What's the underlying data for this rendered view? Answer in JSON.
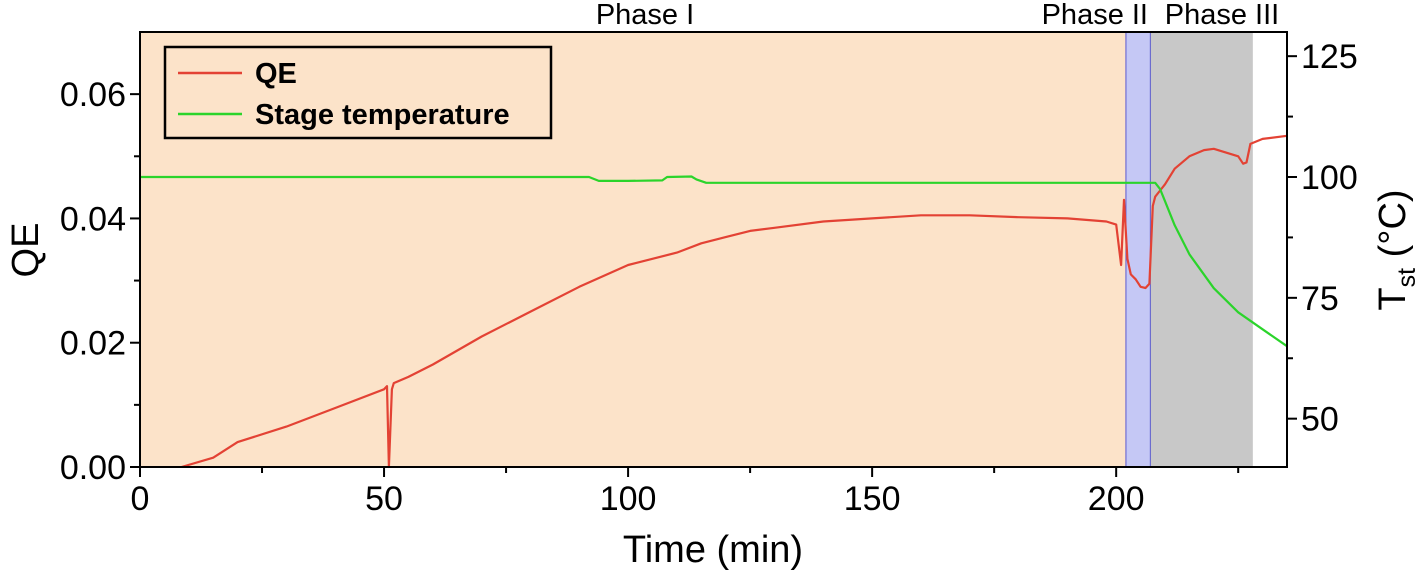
{
  "chart_data": {
    "type": "line",
    "xlabel": "Time (min)",
    "ylabel_left": "QE",
    "ylabel_right_main": "T",
    "ylabel_right_sub": "st",
    "ylabel_right_unit": " (°C)",
    "xlim": [
      0,
      235
    ],
    "ylim_left": [
      0,
      0.07
    ],
    "ylim_right": [
      40,
      130
    ],
    "x_ticks": [
      0,
      50,
      100,
      150,
      200
    ],
    "x_tick_labels": [
      "0",
      "50",
      "100",
      "150",
      "200"
    ],
    "y_left_ticks": [
      0,
      0.02,
      0.04,
      0.06
    ],
    "y_left_tick_labels": [
      "0.00",
      "0.02",
      "0.04",
      "0.06"
    ],
    "y_right_ticks": [
      50,
      75,
      100,
      125
    ],
    "y_right_tick_labels": [
      "50",
      "75",
      "100",
      "125"
    ],
    "grid": false,
    "legend_position": "top-left",
    "phases": [
      {
        "label": "Phase I",
        "x_start": 0,
        "x_end": 202,
        "color": "#fce3c9"
      },
      {
        "label": "Phase II",
        "x_start": 202,
        "x_end": 207,
        "color": "#c5c8f5"
      },
      {
        "label": "Phase III",
        "x_start": 207,
        "x_end": 228,
        "color": "#c8c8c8"
      }
    ],
    "series": [
      {
        "name": "QE",
        "axis": "left",
        "color": "#e34234",
        "x": [
          8.5,
          15,
          20,
          30,
          40,
          50,
          50.6,
          51.0,
          51.6,
          52,
          55,
          60,
          70,
          80,
          90,
          100,
          110,
          115,
          120,
          125,
          130,
          140,
          150,
          160,
          170,
          180,
          190,
          198,
          200,
          201,
          201.6,
          202.3,
          203,
          204,
          205,
          206,
          206.8,
          207.5,
          208,
          209,
          210,
          212,
          215,
          218,
          220,
          225,
          226,
          226.7,
          227.5,
          230,
          235
        ],
        "y": [
          0.0,
          0.0015,
          0.004,
          0.0065,
          0.0095,
          0.0125,
          0.013,
          0.0,
          0.0125,
          0.0135,
          0.0145,
          0.0165,
          0.021,
          0.025,
          0.029,
          0.0325,
          0.0345,
          0.036,
          0.037,
          0.038,
          0.0385,
          0.0395,
          0.04,
          0.0405,
          0.0405,
          0.0402,
          0.04,
          0.0395,
          0.039,
          0.0325,
          0.043,
          0.0335,
          0.031,
          0.0302,
          0.029,
          0.0288,
          0.0295,
          0.042,
          0.0435,
          0.0445,
          0.0455,
          0.048,
          0.05,
          0.051,
          0.0512,
          0.05,
          0.0488,
          0.049,
          0.052,
          0.0528,
          0.0533
        ]
      },
      {
        "name": "Stage temperature",
        "axis": "right",
        "color": "#2bd42b",
        "x": [
          0,
          92,
          94,
          100,
          107,
          108,
          113,
          114,
          116,
          150,
          200,
          205,
          208,
          209,
          210,
          212,
          215,
          220,
          225,
          230,
          235
        ],
        "y": [
          100,
          100,
          99.2,
          99.2,
          99.3,
          100,
          100.1,
          99.5,
          98.8,
          98.8,
          98.8,
          98.8,
          98.8,
          97.5,
          95,
          90,
          84,
          77,
          72,
          68.5,
          65
        ]
      }
    ]
  }
}
